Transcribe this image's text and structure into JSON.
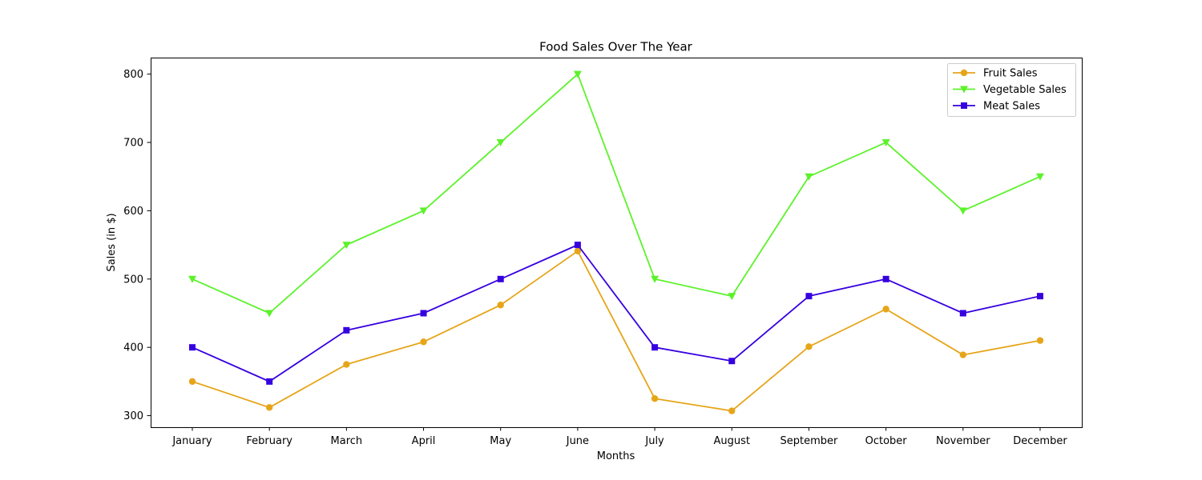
{
  "chart_data": {
    "type": "line",
    "title": "Food Sales Over The Year",
    "xlabel": "Months",
    "ylabel": "Sales (in $)",
    "categories": [
      "January",
      "February",
      "March",
      "April",
      "May",
      "June",
      "July",
      "August",
      "September",
      "October",
      "November",
      "December"
    ],
    "yticks": [
      300,
      400,
      500,
      600,
      700,
      800
    ],
    "ylim": [
      283.1,
      824.2
    ],
    "grid": false,
    "legend_position": "top-right",
    "series": [
      {
        "name": "Fruit Sales",
        "color": "#E6A519",
        "marker": "circle",
        "values": [
          350,
          312,
          375,
          408,
          462,
          541,
          325,
          307,
          401,
          456,
          389,
          410
        ]
      },
      {
        "name": "Vegetable Sales",
        "color": "#5CF22B",
        "marker": "triangle-down",
        "values": [
          500,
          450,
          550,
          600,
          700,
          800,
          500,
          475,
          650,
          700,
          600,
          650
        ]
      },
      {
        "name": "Meat Sales",
        "color": "#3600E0",
        "marker": "square",
        "values": [
          400,
          350,
          425,
          450,
          500,
          550,
          400,
          380,
          475,
          500,
          450,
          475
        ]
      }
    ]
  }
}
